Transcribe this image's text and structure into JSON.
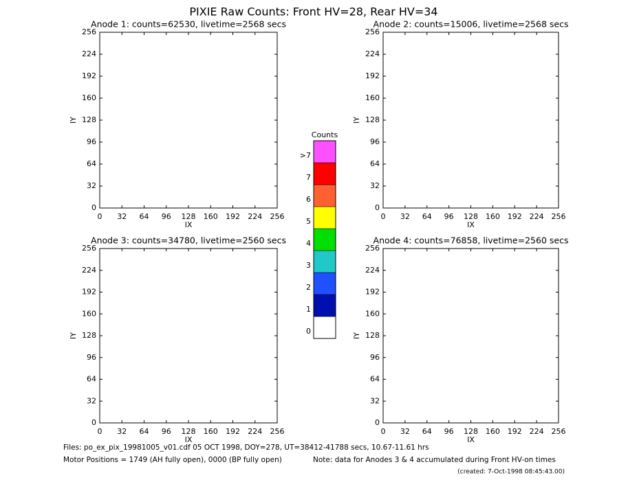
{
  "title": "PIXIE Raw Counts:  Front HV=28, Rear HV=34",
  "chart_data": [
    {
      "type": "heatmap",
      "title": "Anode 1: counts=62530, livetime=2568 secs",
      "x_label": "IX",
      "y_label": "IY",
      "xlim": [
        0,
        256
      ],
      "ylim": [
        0,
        256
      ],
      "xticks": [
        0,
        32,
        64,
        96,
        128,
        160,
        192,
        224,
        256
      ],
      "yticks": [
        0,
        32,
        64,
        96,
        128,
        160,
        192,
        224,
        256
      ]
    },
    {
      "type": "heatmap",
      "title": "Anode 2: counts=15006, livetime=2568 secs",
      "x_label": "IX",
      "y_label": "IY",
      "xlim": [
        0,
        256
      ],
      "ylim": [
        0,
        256
      ],
      "xticks": [
        0,
        32,
        64,
        96,
        128,
        160,
        192,
        224,
        256
      ],
      "yticks": [
        0,
        32,
        64,
        96,
        128,
        160,
        192,
        224,
        256
      ]
    },
    {
      "type": "heatmap",
      "title": "Anode 3: counts=34780, livetime=2560 secs",
      "x_label": "IX",
      "y_label": "IY",
      "xlim": [
        0,
        256
      ],
      "ylim": [
        0,
        256
      ],
      "xticks": [
        0,
        32,
        64,
        96,
        128,
        160,
        192,
        224,
        256
      ],
      "yticks": [
        0,
        32,
        64,
        96,
        128,
        160,
        192,
        224,
        256
      ]
    },
    {
      "type": "heatmap",
      "title": "Anode 4: counts=76858, livetime=2560 secs",
      "x_label": "IX",
      "y_label": "IY",
      "xlim": [
        0,
        256
      ],
      "ylim": [
        0,
        256
      ],
      "xticks": [
        0,
        32,
        64,
        96,
        128,
        160,
        192,
        224,
        256
      ],
      "yticks": [
        0,
        32,
        64,
        96,
        128,
        160,
        192,
        224,
        256
      ]
    }
  ],
  "colorbar": {
    "title": "Counts",
    "levels": [
      {
        "label": "0",
        "color": "#ffffff"
      },
      {
        "label": "1",
        "color": "#0010b0"
      },
      {
        "label": "2",
        "color": "#2050ff"
      },
      {
        "label": "3",
        "color": "#20c8c8"
      },
      {
        "label": "4",
        "color": "#00e000"
      },
      {
        "label": "5",
        "color": "#ffff00"
      },
      {
        "label": "6",
        "color": "#ff6030"
      },
      {
        "label": "7",
        "color": "#ff0000"
      },
      {
        "label": ">7",
        "color": "#ff50ff"
      }
    ]
  },
  "footer": {
    "files": "Files: po_ex_pix_19981005_v01.cdf   05 OCT 1998, DOY=278, UT=38412-41788 secs, 10.67-11.61 hrs",
    "motor": "Motor Positions = 1749 (AH fully open), 0000 (BP fully open)",
    "note": "Note: data for Anodes 3 & 4 accumulated during Front HV-on times",
    "created": "(created:  7-Oct-1998 08:45:43.00)"
  }
}
